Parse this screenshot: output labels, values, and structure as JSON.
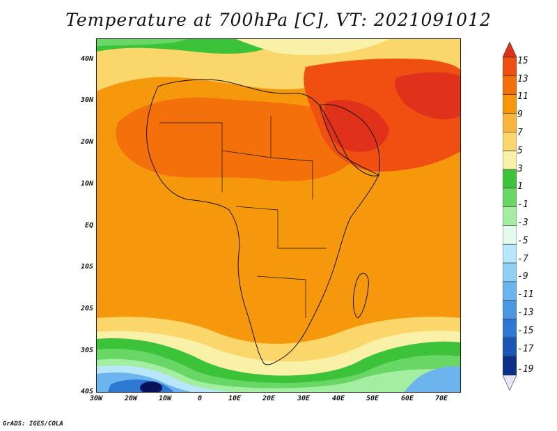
{
  "title": "Temperature at 700hPa [C], VT: 2021091012",
  "credit": "GrADS: IGES/COLA",
  "y_axis_labels": [
    "40N",
    "30N",
    "20N",
    "10N",
    "EQ",
    "10S",
    "20S",
    "30S",
    "40S"
  ],
  "x_axis_labels": [
    "30W",
    "20W",
    "10W",
    "0",
    "10E",
    "20E",
    "30E",
    "40E",
    "50E",
    "60E",
    "70E"
  ],
  "colorbar": {
    "labels": [
      "15",
      "13",
      "11",
      "9",
      "7",
      "5",
      "3",
      "1",
      "-1",
      "-3",
      "-5",
      "-7",
      "-9",
      "-11",
      "-13",
      "-15",
      "-17",
      "-19"
    ],
    "colors": [
      "#e0311a",
      "#ef4f10",
      "#f3700b",
      "#f6980b",
      "#f8b63a",
      "#fbd66a",
      "#f9f1a7",
      "#3cc33a",
      "#69d766",
      "#a3eea0",
      "#e1fcee",
      "#b8e7fb",
      "#8fd0f5",
      "#6bb4ee",
      "#4a98e3",
      "#2c78d3",
      "#1c56b5",
      "#0c2f87",
      "#07125a"
    ]
  },
  "map": {
    "lon_range": [
      -30,
      75
    ],
    "lat_range": [
      -40,
      45
    ],
    "field": "temperature at 700hPa",
    "units": "C",
    "valid_time": "2021091012"
  }
}
